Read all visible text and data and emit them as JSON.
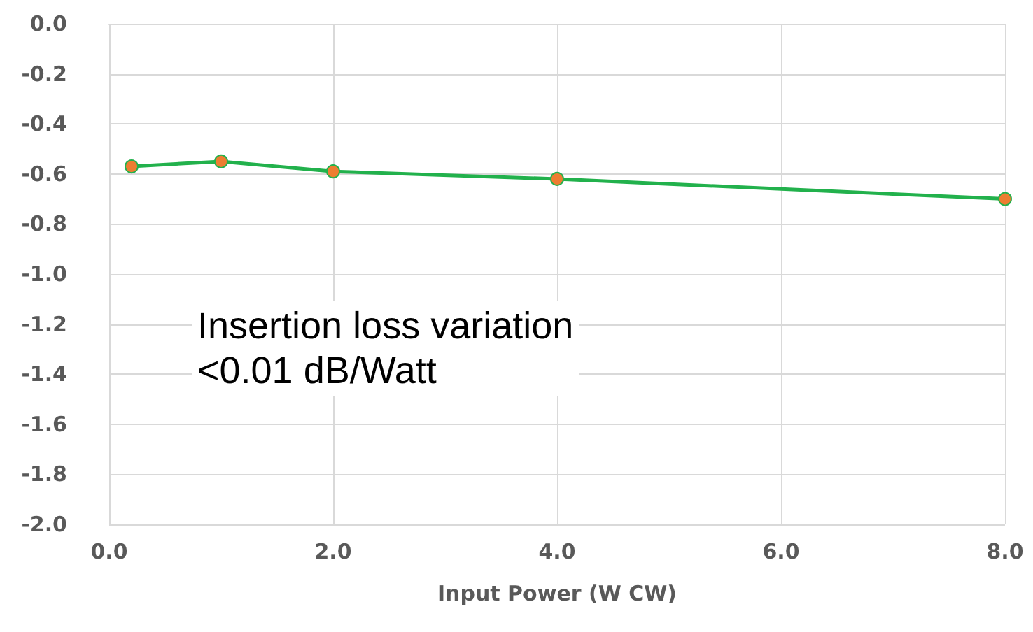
{
  "chart_data": {
    "type": "line",
    "xlabel": "Input Power (W CW)",
    "x": [
      0.2,
      1,
      2,
      4,
      8
    ],
    "series": [
      {
        "color": "#22b14c",
        "values": [
          -0.57,
          -0.55,
          -0.59,
          -0.62,
          -0.7
        ]
      }
    ],
    "marker": "circle",
    "line_style": "solid",
    "grid": true,
    "xlim": [
      0,
      8
    ],
    "xticks": [
      {
        "value": 0,
        "label": "0.0"
      },
      {
        "value": 2,
        "label": "2.0"
      },
      {
        "value": 4,
        "label": "4.0"
      },
      {
        "value": 6,
        "label": "6.0"
      },
      {
        "value": 8,
        "label": "8.0"
      }
    ],
    "ylim": [
      -2,
      0
    ],
    "yticks": [
      {
        "value": -2,
        "label": "-2.0"
      },
      {
        "value": -1.8,
        "label": "-1.8"
      },
      {
        "value": -1.6,
        "label": "-1.6"
      },
      {
        "value": -1.4,
        "label": "-1.4"
      },
      {
        "value": -1.2,
        "label": "-1.2"
      },
      {
        "value": -1,
        "label": "-1.0"
      },
      {
        "value": -0.8,
        "label": "-0.8"
      },
      {
        "value": -0.6,
        "label": "-0.6"
      },
      {
        "value": -0.4,
        "label": "-0.4"
      },
      {
        "value": -0.2,
        "label": "-0.2"
      },
      {
        "value": 0,
        "label": "0.0"
      }
    ],
    "annotations": [
      "Insertion loss variation\n<0.01 dB/Watt"
    ]
  }
}
